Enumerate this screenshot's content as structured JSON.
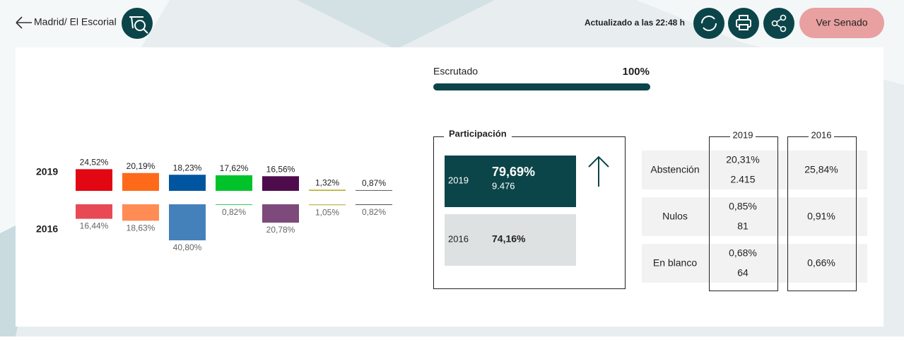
{
  "header": {
    "breadcrumb": "Madrid/ El Escorial",
    "updated": "Actualizado a las 22:48 h",
    "senate_button": "Ver Senado"
  },
  "scrutiny": {
    "label": "Escrutado",
    "value_label": "100%"
  },
  "chart_data": {
    "type": "bar",
    "categories": [
      null,
      null,
      null,
      null,
      null,
      null,
      null
    ],
    "series": [
      {
        "name": "2019",
        "colors": [
          "#e30613",
          "#ff6a1a",
          "#0055a0",
          "#00c32b",
          "#4f0c4c",
          "#b7b12f",
          "#666666"
        ],
        "values": [
          24.52,
          20.19,
          18.23,
          17.62,
          16.56,
          1.32,
          0.87
        ],
        "value_labels": [
          "24,52%",
          "20,19%",
          "18,23%",
          "17,62%",
          "16,56%",
          "1,32%",
          "0,87%"
        ]
      },
      {
        "name": "2016",
        "colors": [
          "#e84a55",
          "#ff8c55",
          "#4481bb",
          "#3fcc5f",
          "#7d4a7b",
          "#c1bc5a",
          "#555555"
        ],
        "values": [
          16.44,
          18.63,
          40.8,
          0.82,
          20.78,
          1.05,
          0.82
        ],
        "value_labels": [
          "16,44%",
          "18,63%",
          "40,80%",
          "0,82%",
          "20,78%",
          "1,05%",
          "0,82%"
        ]
      }
    ]
  },
  "participation": {
    "title": "Participación",
    "rows": [
      {
        "year": "2019",
        "percent": "79,69%",
        "votes": "9.476"
      },
      {
        "year": "2016",
        "percent": "74,16%"
      }
    ]
  },
  "results_table": {
    "columns": [
      "2019",
      "2016"
    ],
    "rows": [
      {
        "label": "Abstención",
        "current": "20,31%",
        "current_count": "2.415",
        "previous": "25,84%"
      },
      {
        "label": "Nulos",
        "current": "0,85%",
        "current_count": "81",
        "previous": "0,91%"
      },
      {
        "label": "En blanco",
        "current": "0,68%",
        "current_count": "64",
        "previous": "0,66%"
      }
    ]
  }
}
